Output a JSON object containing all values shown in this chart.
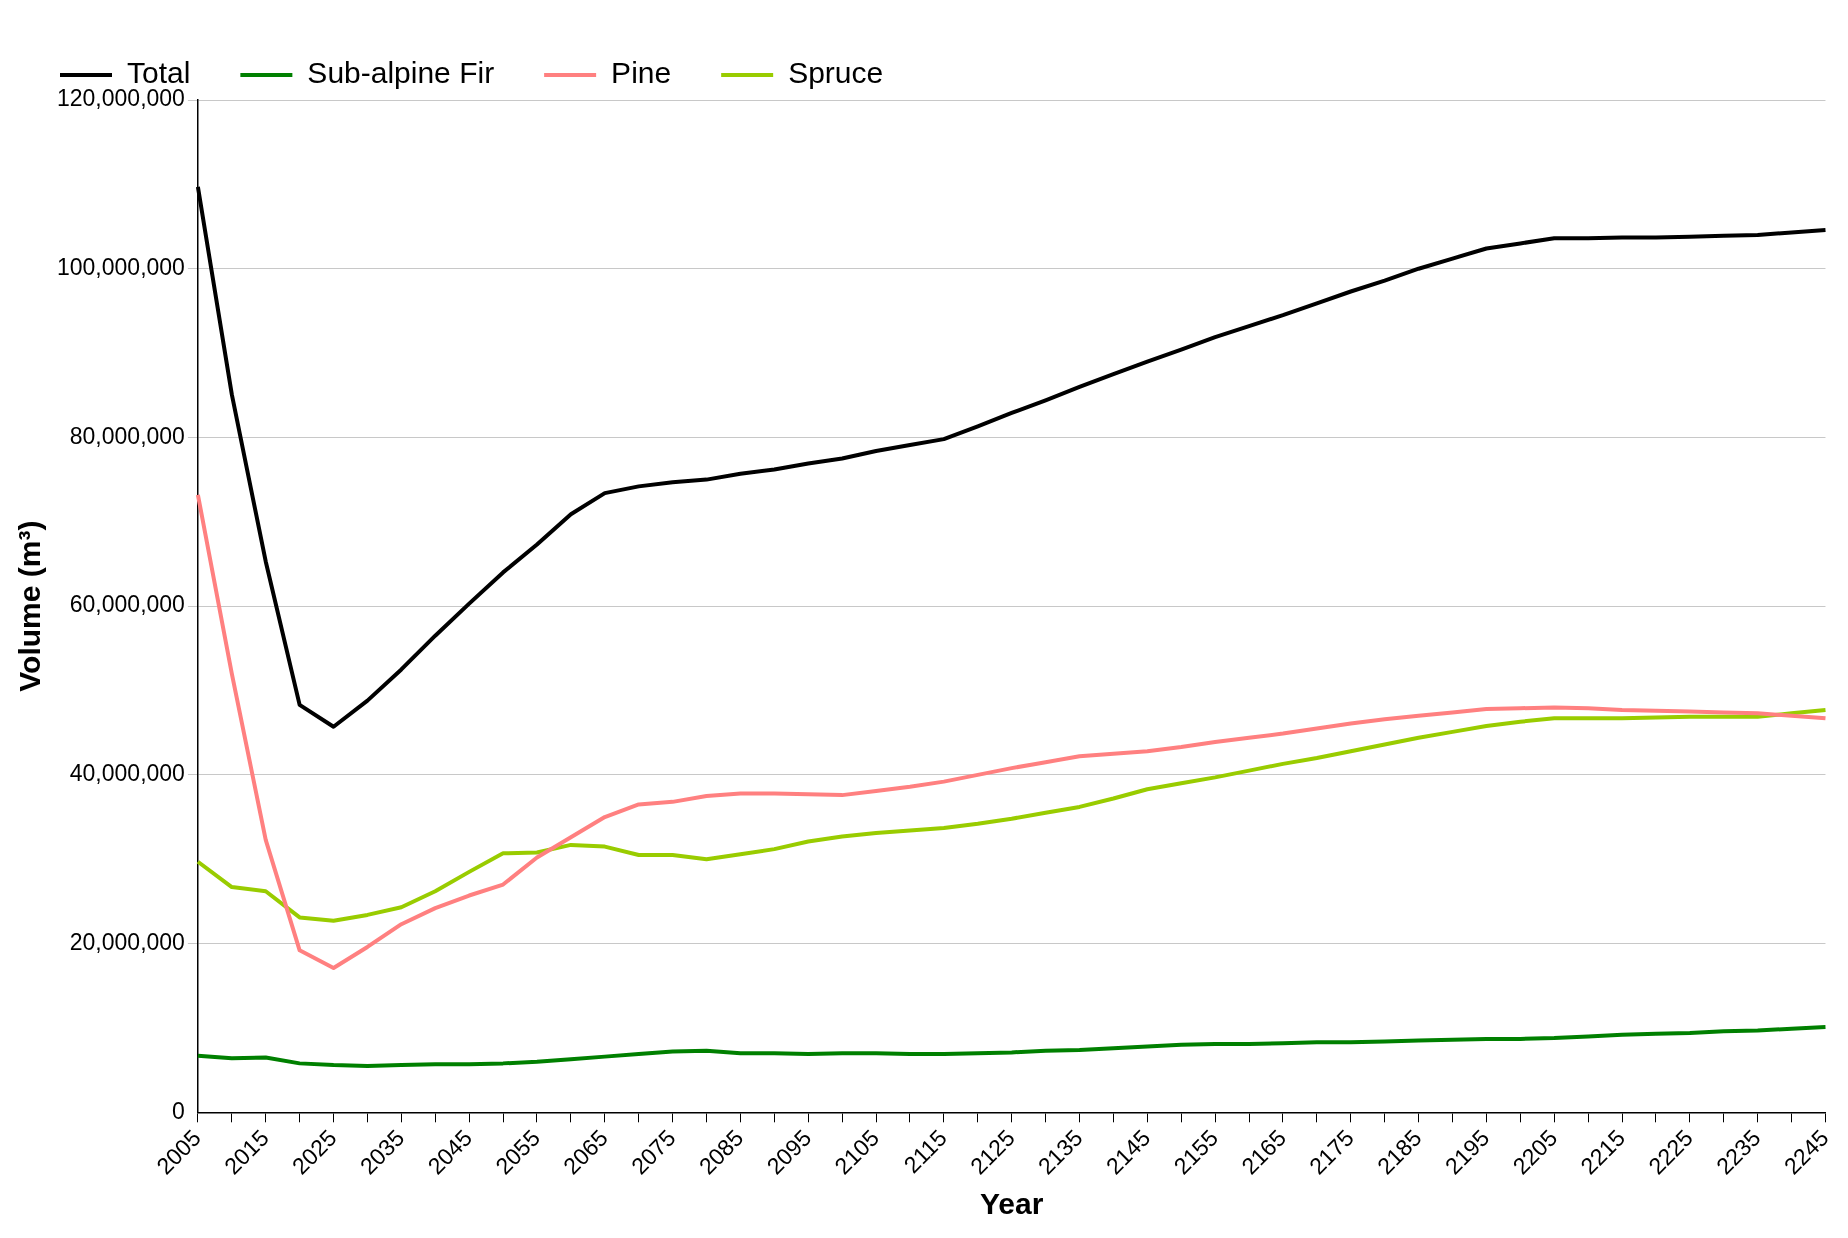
{
  "chart_data": {
    "type": "line",
    "xlabel": "Year",
    "ylabel": "Volume (m³)",
    "categories": [
      "2005",
      null,
      "2015",
      null,
      "2025",
      null,
      "2035",
      null,
      "2045",
      null,
      "2055",
      null,
      "2065",
      null,
      "2075",
      null,
      "2085",
      null,
      "2095",
      null,
      "2105",
      null,
      "2115",
      null,
      "2125",
      null,
      "2135",
      null,
      "2145",
      null,
      "2155",
      null,
      "2165",
      null,
      "2175",
      null,
      "2185",
      null,
      "2195",
      null,
      "2205",
      null,
      "2215",
      null,
      "2225",
      null,
      "2235",
      null,
      "2245"
    ],
    "ylim": [
      0,
      120000000
    ],
    "yticks": [
      {
        "value": 0,
        "label": "0"
      },
      {
        "value": 20000000,
        "label": "20,000,000"
      },
      {
        "value": 40000000,
        "label": "40,000,000"
      },
      {
        "value": 60000000,
        "label": "60,000,000"
      },
      {
        "value": 80000000,
        "label": "80,000,000"
      },
      {
        "value": 100000000,
        "label": "100,000,000"
      },
      {
        "value": 120000000,
        "label": "120,000,000"
      }
    ],
    "grid": "y",
    "legend": "top left",
    "marker": "none",
    "line_style": "solid",
    "series": [
      {
        "name": "Total",
        "color": "#000000",
        "values": [
          109700000.0,
          85100000.0,
          65300000.0,
          48300000.0,
          45700000.0,
          48800000.0,
          52500000.0,
          56500000.0,
          60300000.0,
          64000000.0,
          67300000.0,
          70900000.0,
          73400000.0,
          74200000.0,
          74700000.0,
          75000000.0,
          75700000.0,
          76200000.0,
          76900000.0,
          77500000.0,
          78400000.0,
          79100000.0,
          79800000.0,
          81300000.0,
          82900000.0,
          84400000.0,
          86000000.0,
          87500000.0,
          89000000.0,
          90400000.0,
          91900000.0,
          93200000.0,
          94500000.0,
          95900000.0,
          97300000.0,
          98600000.0,
          100000000.0,
          101200000.0,
          102400000.0,
          103000000.0,
          103600000.0,
          103600000.0,
          103700000.0,
          103700000.0,
          103800000.0,
          103900000.0,
          104000000.0,
          104300000.0,
          104600000.0
        ]
      },
      {
        "name": "Sub-alpine Fir",
        "color": "#008000",
        "values": [
          6700000.0,
          6400000.0,
          6500000.0,
          5800000.0,
          5600000.0,
          5500000.0,
          5600000.0,
          5700000.0,
          5700000.0,
          5800000.0,
          6000000.0,
          6300000.0,
          6600000.0,
          6900000.0,
          7200000.0,
          7300000.0,
          7000000.0,
          7000000.0,
          6900000.0,
          7000000.0,
          7000000.0,
          6900000.0,
          6900000.0,
          7000000.0,
          7100000.0,
          7300000.0,
          7400000.0,
          7600000.0,
          7800000.0,
          8000000.0,
          8100000.0,
          8100000.0,
          8200000.0,
          8300000.0,
          8300000.0,
          8400000.0,
          8500000.0,
          8600000.0,
          8700000.0,
          8700000.0,
          8800000.0,
          9000000.0,
          9200000.0,
          9300000.0,
          9400000.0,
          9600000.0,
          9700000.0,
          9900000.0,
          10100000.0
        ]
      },
      {
        "name": "Pine",
        "color": "#ff8080",
        "values": [
          73200000.0,
          52000000.0,
          32300000.0,
          19200000.0,
          17100000.0,
          19600000.0,
          22300000.0,
          24200000.0,
          25700000.0,
          27000000.0,
          30200000.0,
          32600000.0,
          35000000.0,
          36500000.0,
          36800000.0,
          37500000.0,
          37800000.0,
          37800000.0,
          37700000.0,
          37600000.0,
          38100000.0,
          38600000.0,
          39200000.0,
          40000000.0,
          40800000.0,
          41500000.0,
          42200000.0,
          42500000.0,
          42800000.0,
          43300000.0,
          43900000.0,
          44400000.0,
          44900000.0,
          45500000.0,
          46100000.0,
          46600000.0,
          47000000.0,
          47400000.0,
          47800000.0,
          47900000.0,
          48000000.0,
          47900000.0,
          47700000.0,
          47600000.0,
          47500000.0,
          47400000.0,
          47300000.0,
          47000000.0,
          46700000.0
        ]
      },
      {
        "name": "Spruce",
        "color": "#99cc00",
        "values": [
          29700000.0,
          26700000.0,
          26200000.0,
          23100000.0,
          22700000.0,
          23400000.0,
          24300000.0,
          26200000.0,
          28500000.0,
          30700000.0,
          30800000.0,
          31700000.0,
          31500000.0,
          30500000.0,
          30500000.0,
          30000000.0,
          30600000.0,
          31200000.0,
          32100000.0,
          32700000.0,
          33100000.0,
          33400000.0,
          33700000.0,
          34200000.0,
          34800000.0,
          35500000.0,
          36200000.0,
          37200000.0,
          38300000.0,
          39000000.0,
          39700000.0,
          40500000.0,
          41300000.0,
          42000000.0,
          42800000.0,
          43600000.0,
          44400000.0,
          45100000.0,
          45800000.0,
          46300000.0,
          46700000.0,
          46700000.0,
          46700000.0,
          46800000.0,
          46900000.0,
          46900000.0,
          46900000.0,
          47300000.0,
          47700000.0
        ]
      }
    ]
  }
}
